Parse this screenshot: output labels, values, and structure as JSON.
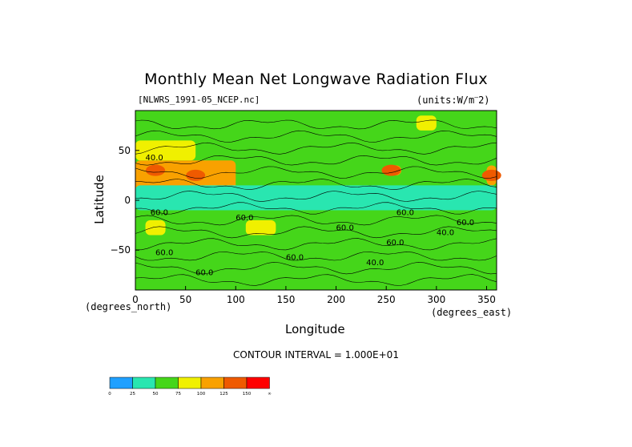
{
  "chart_data": {
    "type": "heatmap",
    "title": "Monthly Mean Net Longwave Radiation Flux",
    "file_label": "[NLWRS_1991-05_NCEP.nc]",
    "units_label": "(units:W/m^2)",
    "xlabel": "Longitude",
    "ylabel": "Latitude",
    "x_unit_label": "(degrees_east)",
    "y_unit_label": "(degrees_north)",
    "xlim": [
      0,
      360
    ],
    "ylim": [
      -90,
      90
    ],
    "x_ticks": [
      "0",
      "50",
      "100",
      "150",
      "200",
      "250",
      "300",
      "350"
    ],
    "y_ticks": [
      "50",
      "0",
      "-50"
    ],
    "contour_interval_label": "CONTOUR INTERVAL = 1.000E+01",
    "colorbar": {
      "levels": [
        "0",
        "25",
        "50",
        "75",
        "100",
        "125",
        "150",
        "∞"
      ],
      "colors": [
        "#1fa0ff",
        "#29e6b0",
        "#45d61a",
        "#f0f000",
        "#f9a100",
        "#ef5a00",
        "#ff0000"
      ]
    },
    "contour_labels": [
      "60.0",
      "40.0",
      "60.0",
      "60.0",
      "60.0",
      "40.0",
      "60.0",
      "60.0",
      "60.0",
      "60.0",
      "40.0",
      "60.0"
    ],
    "field_description_regions": [
      {
        "lon": [
          0,
          100
        ],
        "lat": [
          10,
          40
        ],
        "value": 110
      },
      {
        "lon": [
          250,
          265
        ],
        "lat": [
          25,
          35
        ],
        "value": 110
      },
      {
        "lon": [
          350,
          360
        ],
        "lat": [
          15,
          35
        ],
        "value": 110
      },
      {
        "lon": [
          0,
          60
        ],
        "lat": [
          40,
          60
        ],
        "value": 90
      },
      {
        "lon": [
          110,
          140
        ],
        "lat": [
          -35,
          -20
        ],
        "value": 85
      },
      {
        "lon": [
          10,
          30
        ],
        "lat": [
          -35,
          -20
        ],
        "value": 80
      },
      {
        "lon": [
          280,
          300
        ],
        "lat": [
          70,
          85
        ],
        "value": 85
      },
      {
        "lon": [
          0,
          360
        ],
        "lat": [
          -90,
          -70
        ],
        "value": 55
      },
      {
        "lon": [
          0,
          360
        ],
        "lat": [
          -10,
          15
        ],
        "value": 40
      }
    ]
  }
}
